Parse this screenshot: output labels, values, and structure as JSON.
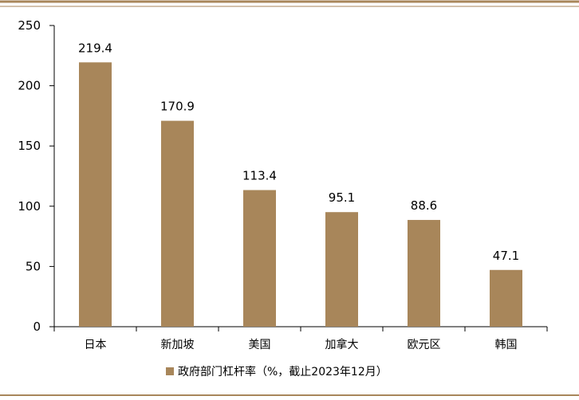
{
  "colors": {
    "bar": "#A8865A",
    "rule": "#A8865A",
    "axis": "#000000"
  },
  "chart_data": {
    "type": "bar",
    "categories": [
      "日本",
      "新加坡",
      "美国",
      "加拿大",
      "欧元区",
      "韩国"
    ],
    "series": [
      {
        "name": "政府部门杠杆率（%，截止2023年12月）",
        "values": [
          219.4,
          170.9,
          113.4,
          95.1,
          88.6,
          47.1
        ]
      }
    ],
    "data_labels": [
      "219.4",
      "170.9",
      "113.4",
      "95.1",
      "88.6",
      "47.1"
    ],
    "ylim": [
      0,
      250
    ],
    "yticks": [
      0,
      50,
      100,
      150,
      200,
      250
    ],
    "grid": false,
    "legend_position": "bottom"
  }
}
